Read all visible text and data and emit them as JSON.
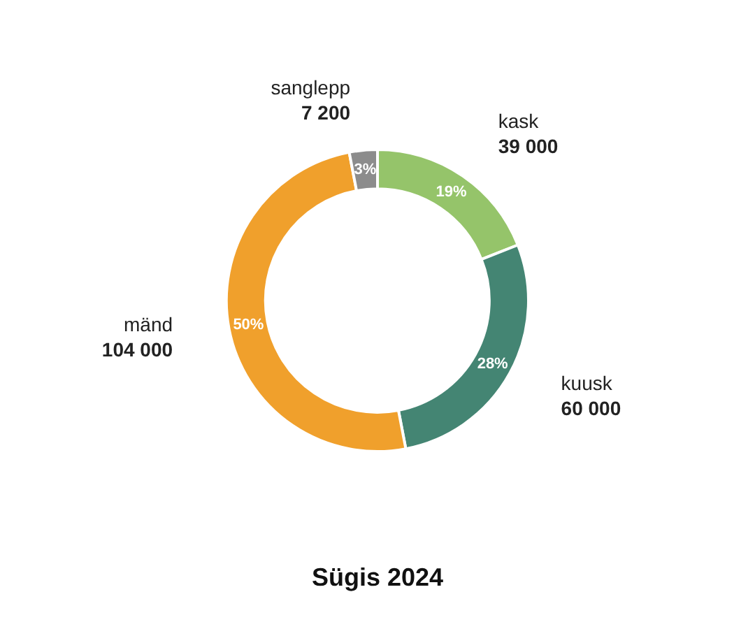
{
  "chart_data": {
    "type": "donut",
    "title": "Sügis 2024",
    "categories": [
      "kask",
      "kuusk",
      "mänd",
      "sanglepp"
    ],
    "values": [
      19,
      28,
      50,
      3
    ],
    "colors": [
      "#95c46a",
      "#448573",
      "#f0a02c",
      "#8c8c8c"
    ],
    "value_labels": [
      "19%",
      "28%",
      "50%",
      "3%"
    ],
    "annotations": [
      "39 000",
      "60 000",
      "104 000",
      "7 200"
    ]
  }
}
